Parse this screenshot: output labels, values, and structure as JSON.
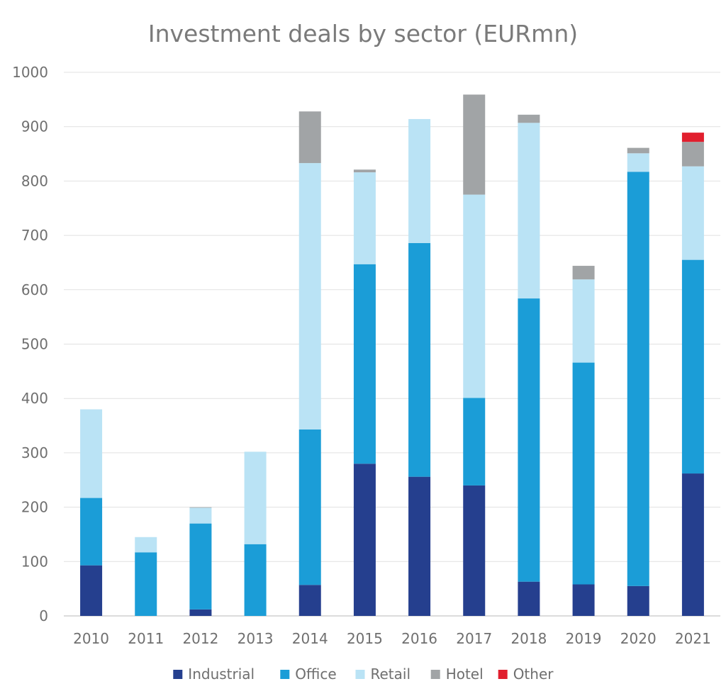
{
  "chart_data": {
    "type": "bar",
    "stacked": true,
    "title": "Investment deals by sector (EURmn)",
    "xlabel": "",
    "ylabel": "",
    "ylim": [
      0,
      1000
    ],
    "yticks": [
      0,
      100,
      200,
      300,
      400,
      500,
      600,
      700,
      800,
      900,
      1000
    ],
    "grid": true,
    "legend_position": "bottom",
    "categories": [
      "2010",
      "2011",
      "2012",
      "2013",
      "2014",
      "2015",
      "2016",
      "2017",
      "2018",
      "2019",
      "2020",
      "2021"
    ],
    "series": [
      {
        "name": "Industrial",
        "color": "#253f8e",
        "values": [
          93,
          0,
          12,
          0,
          57,
          280,
          256,
          240,
          63,
          58,
          55,
          262
        ]
      },
      {
        "name": "Office",
        "color": "#1b9dd7",
        "values": [
          124,
          117,
          158,
          132,
          286,
          367,
          430,
          161,
          521,
          408,
          762,
          393
        ]
      },
      {
        "name": "Retail",
        "color": "#bae3f5",
        "values": [
          163,
          28,
          29,
          170,
          490,
          169,
          228,
          374,
          323,
          153,
          34,
          172
        ]
      },
      {
        "name": "Hotel",
        "color": "#a1a4a6",
        "values": [
          0,
          0,
          1,
          0,
          95,
          5,
          0,
          184,
          15,
          25,
          10,
          45
        ]
      },
      {
        "name": "Other",
        "color": "#e11f2e",
        "values": [
          0,
          0,
          0,
          0,
          0,
          0,
          0,
          0,
          0,
          0,
          0,
          17
        ]
      }
    ]
  }
}
